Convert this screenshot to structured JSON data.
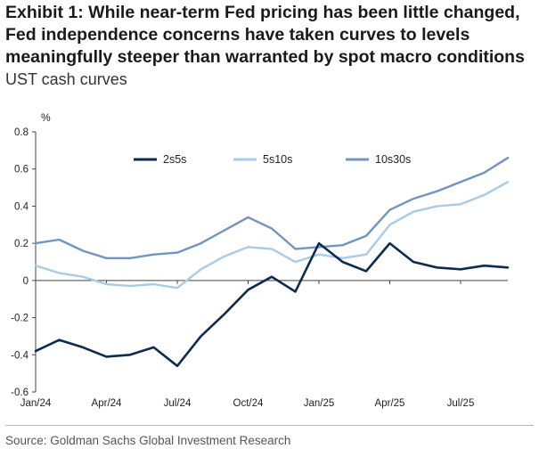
{
  "title": "Exhibit 1: While near-term Fed pricing has been little changed, Fed independence concerns have taken curves to levels meaningfully steeper than warranted by spot macro conditions",
  "subtitle": "UST cash curves",
  "source": "Source: Goldman Sachs Global Investment Research",
  "chart_data": {
    "type": "line",
    "ylabel": "%",
    "ylim": [
      -0.6,
      0.8
    ],
    "yticks": [
      "0.8",
      "0.6",
      "0.4",
      "0.2",
      "0",
      "-0.2",
      "-0.4",
      "-0.6"
    ],
    "xticks": [
      "Jan/24",
      "Apr/24",
      "Jul/24",
      "Oct/24",
      "Jan/25",
      "Apr/25",
      "Jul/25"
    ],
    "x": [
      "Jan/24",
      "Feb/24",
      "Mar/24",
      "Apr/24",
      "May/24",
      "Jun/24",
      "Jul/24",
      "Aug/24",
      "Sep/24",
      "Oct/24",
      "Nov/24",
      "Dec/24",
      "Jan/25",
      "Feb/25",
      "Mar/25",
      "Apr/25",
      "May/25",
      "Jun/25",
      "Jul/25",
      "Aug/25",
      "Sep/25"
    ],
    "legend_position": "top",
    "grid": false,
    "series": [
      {
        "name": "2s5s",
        "color": "#0d2b4e",
        "values": [
          -0.38,
          -0.32,
          -0.36,
          -0.41,
          -0.4,
          -0.36,
          -0.46,
          -0.3,
          -0.18,
          -0.05,
          0.02,
          -0.06,
          0.2,
          0.1,
          0.05,
          0.2,
          0.1,
          0.07,
          0.06,
          0.08,
          0.07
        ]
      },
      {
        "name": "5s10s",
        "color": "#a9cbe6",
        "values": [
          0.08,
          0.04,
          0.02,
          -0.02,
          -0.03,
          -0.02,
          -0.04,
          0.06,
          0.13,
          0.18,
          0.17,
          0.1,
          0.14,
          0.12,
          0.14,
          0.3,
          0.37,
          0.4,
          0.41,
          0.46,
          0.53
        ]
      },
      {
        "name": "10s30s",
        "color": "#7195c0",
        "values": [
          0.2,
          0.22,
          0.16,
          0.12,
          0.12,
          0.14,
          0.15,
          0.2,
          0.27,
          0.34,
          0.28,
          0.17,
          0.18,
          0.19,
          0.24,
          0.38,
          0.44,
          0.48,
          0.53,
          0.58,
          0.66
        ]
      }
    ]
  }
}
